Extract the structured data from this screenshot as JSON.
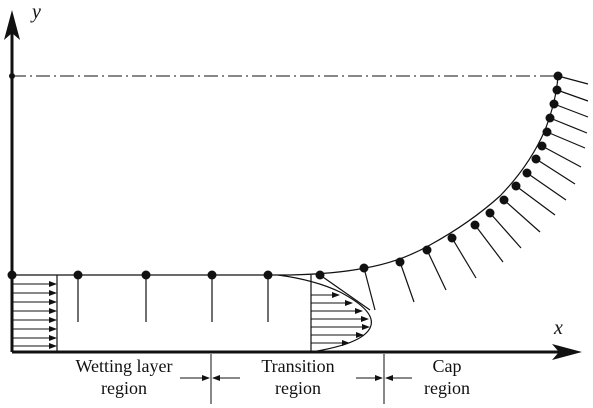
{
  "axes": {
    "x_label": "x",
    "y_label": "y"
  },
  "regions": {
    "wetting_line1": "Wetting layer",
    "wetting_line2": "region",
    "transition_line1": "Transition",
    "transition_line2": "region",
    "cap_line1": "Cap",
    "cap_line2": "region"
  },
  "colors": {
    "ink": "#111111",
    "background": "#ffffff"
  }
}
